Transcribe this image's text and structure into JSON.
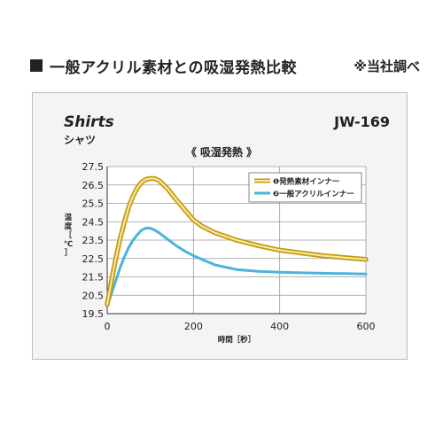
{
  "header": {
    "title": "一般アクリル素材との吸湿発熱比較",
    "note": "※当社調べ"
  },
  "product": {
    "name": "Shirts",
    "name_ja": "シャツ",
    "model": "JW-169"
  },
  "chart_data": {
    "type": "line",
    "title": "《 吸湿発熱 》",
    "xlabel": "時間［秒］",
    "ylabel": "温度［℃］",
    "xlim": [
      0,
      600
    ],
    "ylim": [
      19.5,
      27.5
    ],
    "x_ticks": [
      0,
      200,
      400,
      600
    ],
    "y_ticks": [
      19.5,
      20.5,
      21.5,
      22.5,
      23.5,
      24.5,
      25.5,
      26.5,
      27.5
    ],
    "grid": true,
    "legend_position": "top-right",
    "series": [
      {
        "name": "❶発熱素材インナー",
        "color": "#e3b51d",
        "x": [
          0,
          10,
          20,
          30,
          40,
          50,
          60,
          70,
          80,
          90,
          100,
          110,
          120,
          140,
          160,
          180,
          200,
          220,
          250,
          300,
          350,
          400,
          450,
          500,
          550,
          600
        ],
        "y": [
          20.0,
          21.3,
          22.5,
          23.6,
          24.5,
          25.3,
          25.9,
          26.35,
          26.65,
          26.8,
          26.85,
          26.85,
          26.75,
          26.3,
          25.7,
          25.15,
          24.6,
          24.25,
          23.9,
          23.5,
          23.2,
          22.95,
          22.8,
          22.65,
          22.55,
          22.45
        ]
      },
      {
        "name": "❷一般アクリルインナー",
        "color": "#4ab4dc",
        "x": [
          0,
          10,
          20,
          30,
          40,
          50,
          60,
          70,
          80,
          90,
          100,
          110,
          120,
          140,
          160,
          180,
          200,
          250,
          300,
          350,
          400,
          450,
          500,
          550,
          600
        ],
        "y": [
          19.9,
          20.6,
          21.3,
          22.0,
          22.6,
          23.1,
          23.5,
          23.8,
          24.05,
          24.15,
          24.15,
          24.05,
          23.9,
          23.55,
          23.2,
          22.9,
          22.65,
          22.15,
          21.9,
          21.8,
          21.75,
          21.72,
          21.7,
          21.68,
          21.66
        ]
      }
    ]
  }
}
